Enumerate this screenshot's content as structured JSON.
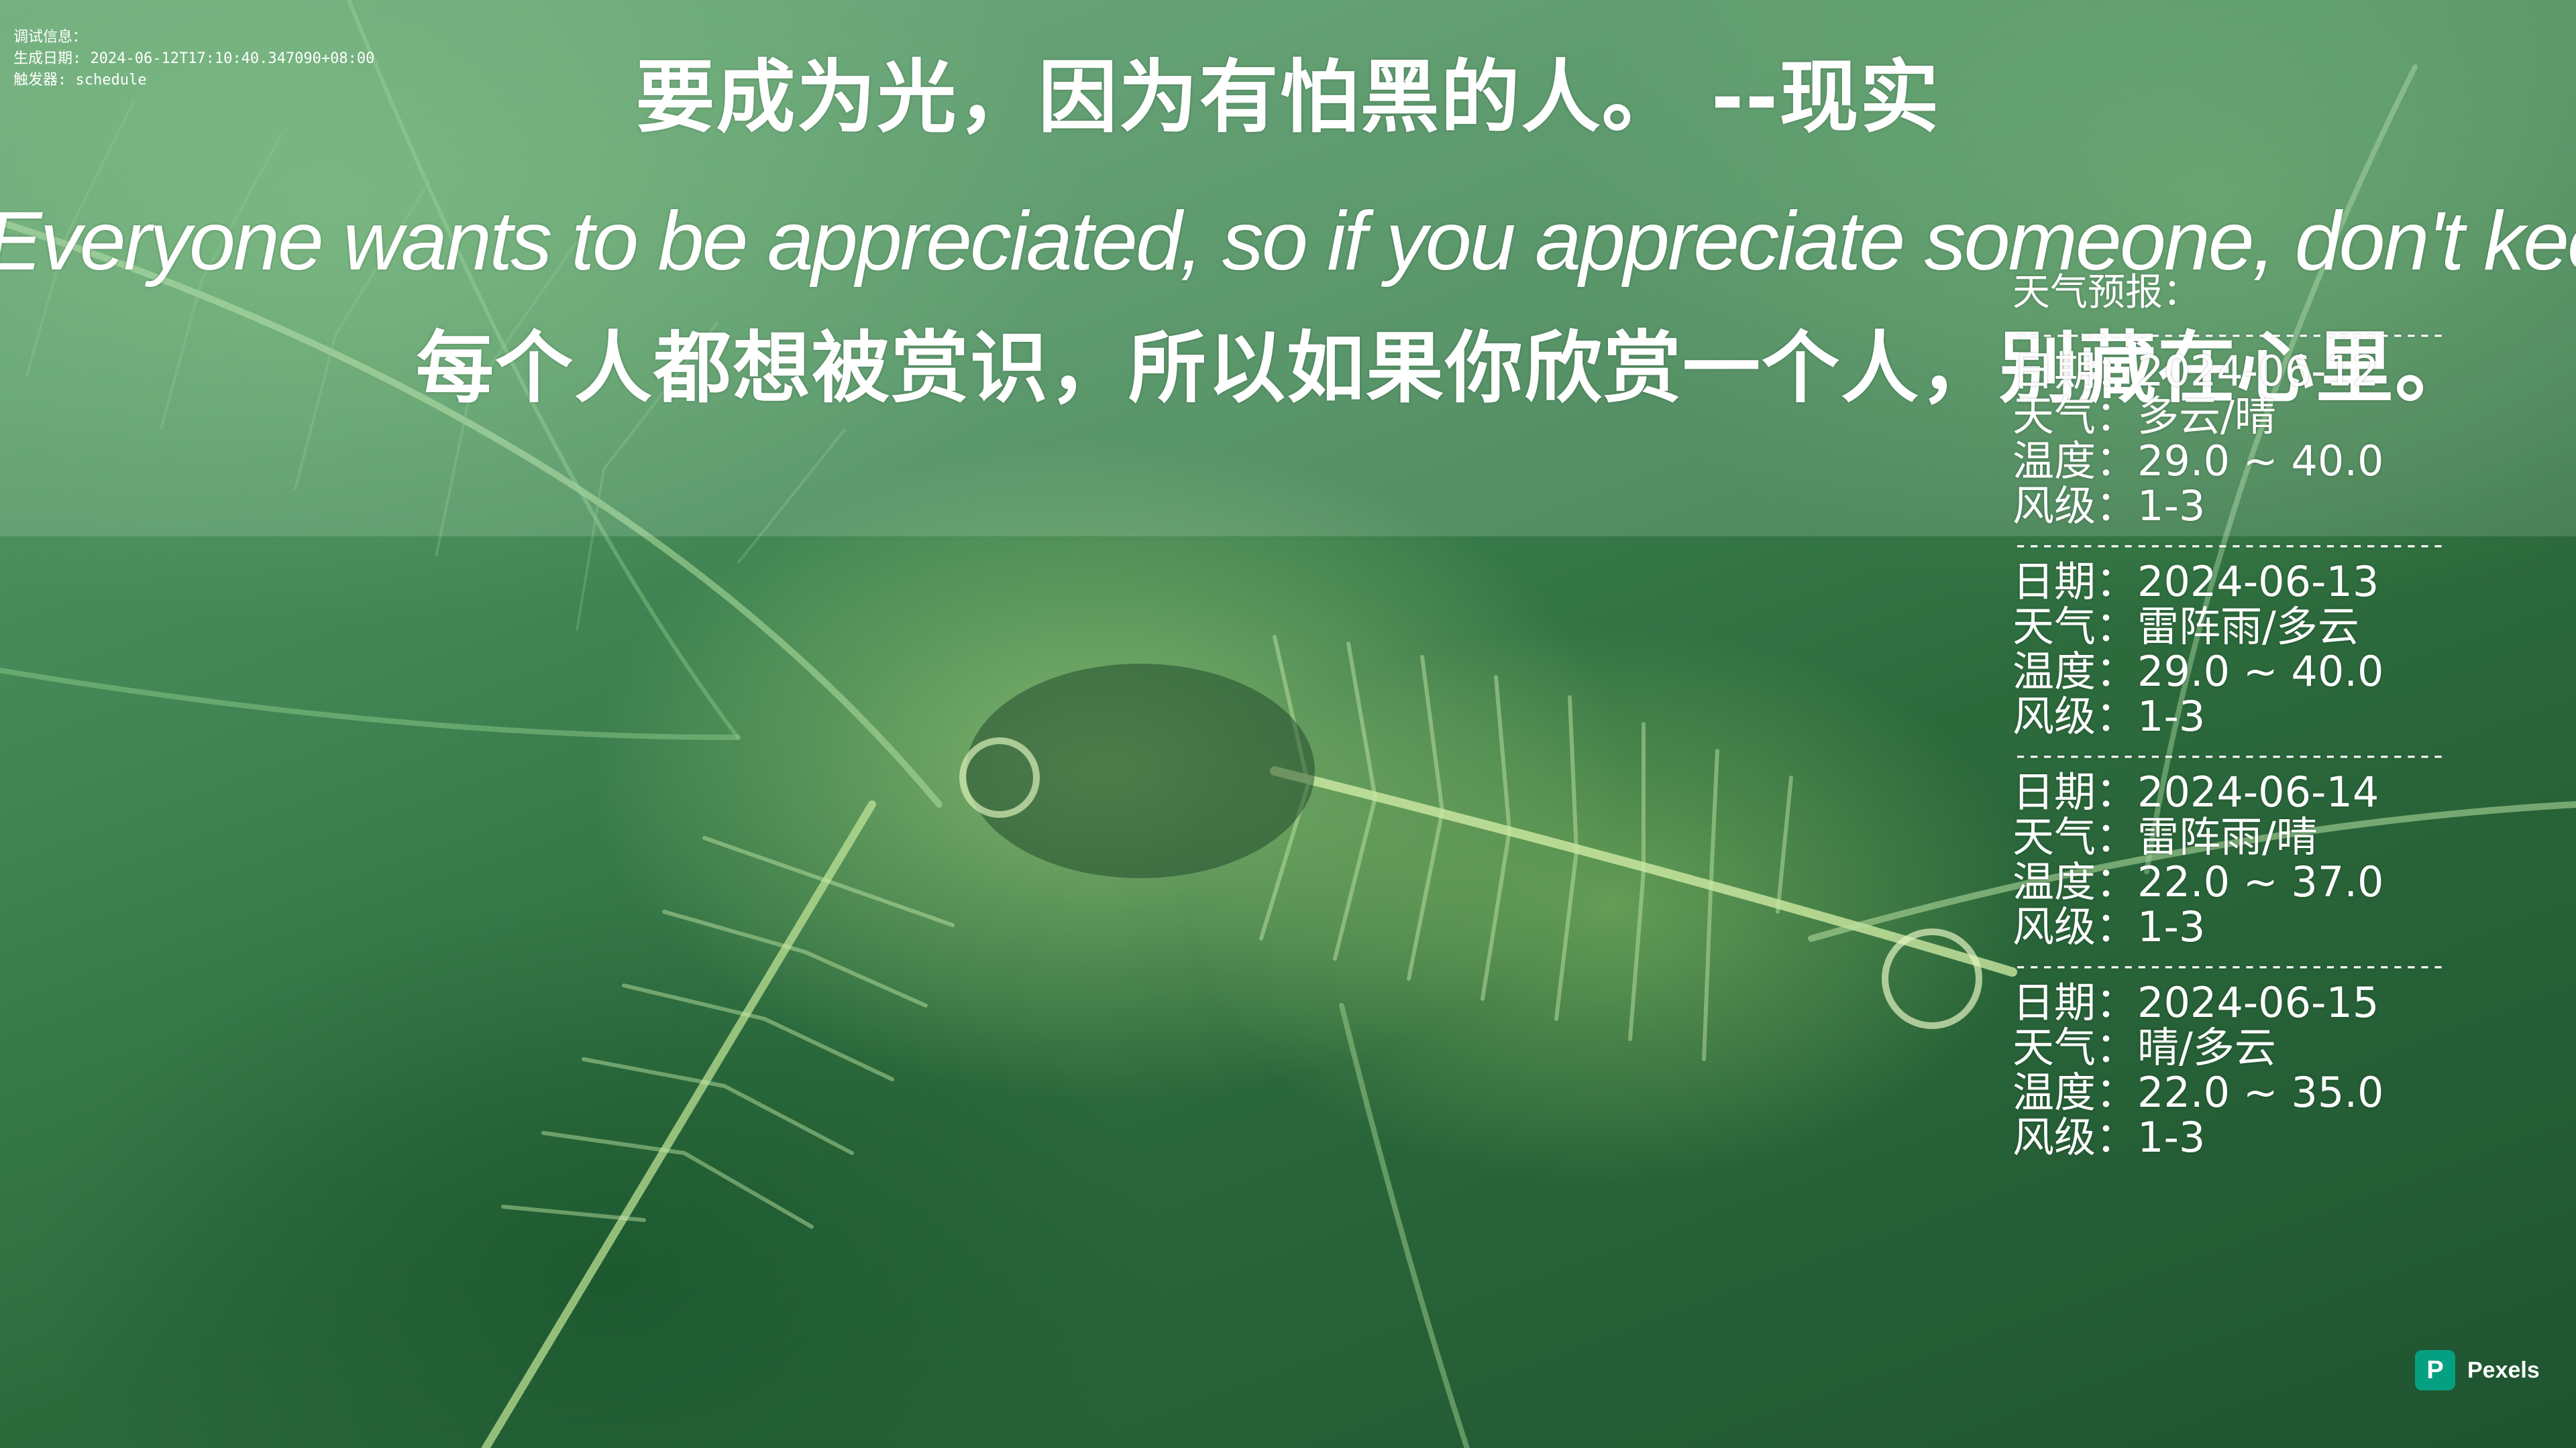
{
  "debug": {
    "lines": [
      "调试信息：",
      "生成日期: 2024-06-12T17:10:40.347090+08:00",
      "触发器: schedule"
    ]
  },
  "quote": {
    "chinese": "要成为光，因为有怕黑的人。  --现实",
    "english": "Everyone wants to be appreciated, so if you appreciate someone, don't keep it a secret.",
    "translation": "每个人都想被赏识，所以如果你欣赏一个人，别藏在心里。"
  },
  "weather": {
    "title": "天气预报：",
    "divider": "----------------------------------------",
    "labels": {
      "date": "日期：",
      "weather": "天气：",
      "temperature": "温度：",
      "wind": "风级："
    },
    "days": [
      {
        "date": "2024-06-12",
        "weather": "多云/晴",
        "temperature": "29.0 ~ 40.0",
        "wind": "1-3"
      },
      {
        "date": "2024-06-13",
        "weather": "雷阵雨/多云",
        "temperature": "29.0 ~ 40.0",
        "wind": "1-3"
      },
      {
        "date": "2024-06-14",
        "weather": "雷阵雨/晴",
        "temperature": "22.0 ~ 37.0",
        "wind": "1-3"
      },
      {
        "date": "2024-06-15",
        "weather": "晴/多云",
        "temperature": "22.0 ~ 35.0",
        "wind": "1-3"
      }
    ]
  },
  "attribution": {
    "logo_letter": "P",
    "label": "Pexels",
    "brand_color": "#05a081"
  },
  "background": {
    "subject": "fern-leaves-photo-icon"
  }
}
